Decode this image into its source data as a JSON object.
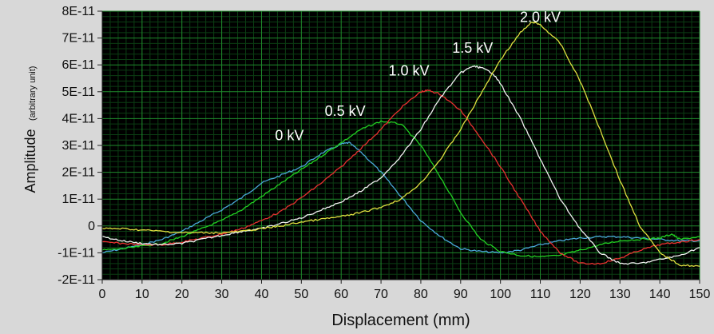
{
  "chart_data": {
    "type": "line",
    "xlabel": "Displacement (mm)",
    "ylabel": "Amplitude",
    "ylabel_unit": "(arbitrary unit)",
    "xlim": [
      0,
      150
    ],
    "ylim": [
      -2e-11,
      8e-11
    ],
    "xticks": [
      0,
      10,
      20,
      30,
      40,
      50,
      60,
      70,
      80,
      90,
      100,
      110,
      120,
      130,
      140,
      150
    ],
    "xtick_labels": [
      "0",
      "10",
      "20",
      "30",
      "40",
      "50",
      "60",
      "70",
      "80",
      "90",
      "100",
      "110",
      "120",
      "130",
      "140",
      "150"
    ],
    "yticks": [
      -2e-11,
      -1e-11,
      0,
      1e-11,
      2e-11,
      3e-11,
      4e-11,
      5e-11,
      6e-11,
      7e-11,
      8e-11
    ],
    "ytick_labels": [
      "-2E-11",
      "-1E-11",
      "0",
      "1E-11",
      "2E-11",
      "3E-11",
      "4E-11",
      "5E-11",
      "6E-11",
      "7E-11",
      "8E-11"
    ],
    "grid": true,
    "colors": {
      "plot_background": "#000000",
      "major_grid": "#1f8a2c",
      "minor_grid": "#0b3d13",
      "panel_background": "#d8d8d8",
      "annotation_text": "#ffffff"
    },
    "series": [
      {
        "name": "0 kV",
        "color": "#4aa8d8",
        "x": [
          0,
          5,
          10,
          15,
          20,
          25,
          30,
          35,
          40,
          45,
          50,
          55,
          60,
          62,
          65,
          70,
          75,
          80,
          85,
          90,
          95,
          100,
          105,
          110,
          115,
          120,
          125,
          130,
          135,
          140,
          145,
          150
        ],
        "y": [
          -1e-11,
          -8.5e-12,
          -7e-12,
          -5e-12,
          -2e-12,
          2e-12,
          6e-12,
          1.05e-11,
          1.6e-11,
          1.9e-11,
          2.2e-11,
          2.7e-11,
          3.05e-11,
          3.1e-11,
          2.75e-11,
          2e-11,
          1.1e-11,
          2e-12,
          -4e-12,
          -8.5e-12,
          -9.5e-12,
          -1e-11,
          -9e-12,
          -7e-12,
          -5.5e-12,
          -4.5e-12,
          -4e-12,
          -4e-12,
          -4.5e-12,
          -5e-12,
          -5.5e-12,
          -5.5e-12
        ]
      },
      {
        "name": "0.5 kV",
        "color": "#22d022",
        "x": [
          0,
          5,
          10,
          15,
          20,
          25,
          30,
          35,
          40,
          45,
          50,
          55,
          60,
          65,
          70,
          75,
          80,
          85,
          90,
          95,
          100,
          105,
          110,
          115,
          120,
          125,
          130,
          135,
          140,
          143,
          145,
          150
        ],
        "y": [
          -9e-12,
          -8.5e-12,
          -7.5e-12,
          -6.5e-12,
          -4e-12,
          -1e-12,
          2e-12,
          6e-12,
          1.1e-11,
          1.6e-11,
          2.1e-11,
          2.6e-11,
          3.1e-11,
          3.6e-11,
          3.9e-11,
          3.8e-11,
          3e-11,
          1.8e-11,
          5e-12,
          -5e-12,
          -9.5e-12,
          -1.1e-11,
          -1.15e-11,
          -1.1e-11,
          -9e-12,
          -7e-12,
          -5.5e-12,
          -5e-12,
          -4.5e-12,
          -3e-12,
          -5e-12,
          -4e-12
        ]
      },
      {
        "name": "1.0 kV",
        "color": "#e83030",
        "x": [
          0,
          5,
          10,
          15,
          20,
          25,
          30,
          35,
          40,
          45,
          50,
          55,
          60,
          65,
          70,
          75,
          80,
          82,
          85,
          90,
          95,
          100,
          105,
          110,
          115,
          120,
          125,
          130,
          135,
          140,
          145,
          150
        ],
        "y": [
          -6e-12,
          -6.5e-12,
          -7e-12,
          -7e-12,
          -6e-12,
          -4.5e-12,
          -3e-12,
          -1e-12,
          2e-12,
          5.5e-12,
          1.05e-11,
          1.6e-11,
          2.2e-11,
          2.9e-11,
          3.6e-11,
          4.4e-11,
          5e-11,
          5.05e-11,
          4.9e-11,
          4.3e-11,
          3.3e-11,
          2.2e-11,
          1e-11,
          -2e-12,
          -1e-11,
          -1.4e-11,
          -1.4e-11,
          -1.2e-11,
          -9e-12,
          -7e-12,
          -6e-12,
          -5e-12
        ]
      },
      {
        "name": "1.5 kV",
        "color": "#f0f0f0",
        "x": [
          0,
          5,
          10,
          15,
          20,
          25,
          30,
          35,
          40,
          45,
          50,
          55,
          60,
          65,
          70,
          75,
          80,
          85,
          90,
          93,
          95,
          98,
          100,
          105,
          110,
          115,
          120,
          125,
          130,
          135,
          140,
          145,
          150
        ],
        "y": [
          -4e-12,
          -5.5e-12,
          -6.5e-12,
          -7e-12,
          -6.5e-12,
          -5e-12,
          -3.5e-12,
          -2e-12,
          -1e-12,
          1e-12,
          3e-12,
          6e-12,
          9e-12,
          1.3e-11,
          1.8e-11,
          2.6e-11,
          3.6e-11,
          4.8e-11,
          5.7e-11,
          5.95e-11,
          5.9e-11,
          5.7e-11,
          5.3e-11,
          4e-11,
          2.5e-11,
          1e-11,
          -1e-12,
          -1e-11,
          -1.4e-11,
          -1.4e-11,
          -1.25e-11,
          -1.1e-11,
          -8e-12
        ]
      },
      {
        "name": "2.0 kV",
        "color": "#e0e040",
        "x": [
          0,
          5,
          10,
          15,
          20,
          25,
          30,
          35,
          40,
          45,
          50,
          55,
          60,
          65,
          70,
          75,
          80,
          85,
          90,
          95,
          100,
          105,
          108,
          110,
          115,
          120,
          125,
          130,
          135,
          140,
          145,
          150
        ],
        "y": [
          -1e-12,
          -1e-12,
          -1.5e-12,
          -2e-12,
          -2.5e-12,
          -2.5e-12,
          -2.5e-12,
          -2e-12,
          -1e-12,
          0,
          1.5e-12,
          2.5e-12,
          3.5e-12,
          5e-12,
          7e-12,
          1e-11,
          1.6e-11,
          2.5e-11,
          3.6e-11,
          4.9e-11,
          6.2e-11,
          7.2e-11,
          7.6e-11,
          7.5e-11,
          6.8e-11,
          5.4e-11,
          3.6e-11,
          1.7e-11,
          0,
          -1e-11,
          -1.45e-11,
          -1.5e-11
        ]
      }
    ],
    "annotations": [
      {
        "text": "0 kV",
        "x": 47,
        "y": 3.2e-11
      },
      {
        "text": "0.5 kV",
        "x": 61,
        "y": 4.1e-11
      },
      {
        "text": "1.0 kV",
        "x": 77,
        "y": 5.6e-11
      },
      {
        "text": "1.5 kV",
        "x": 93,
        "y": 6.45e-11
      },
      {
        "text": "2.0 kV",
        "x": 110,
        "y": 7.6e-11
      }
    ]
  }
}
